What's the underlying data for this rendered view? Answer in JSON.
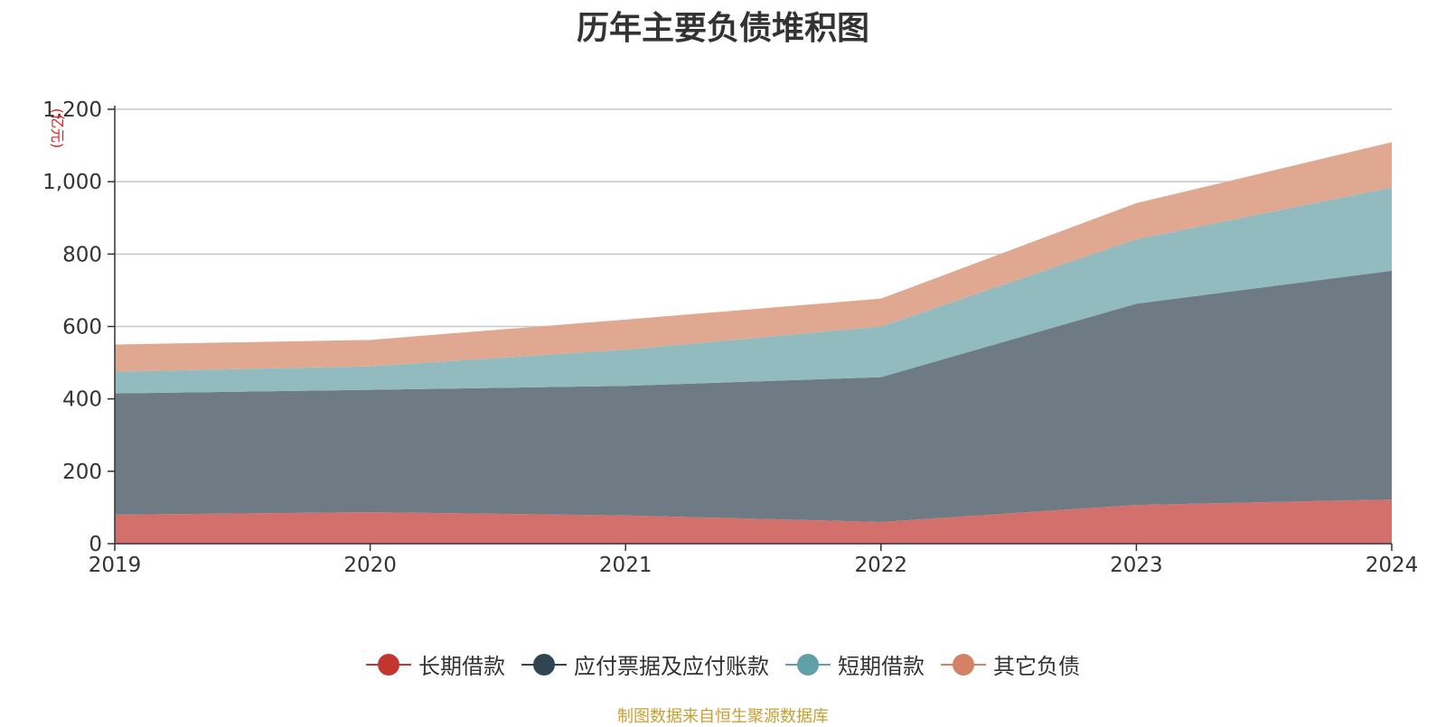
{
  "chart_data": {
    "type": "area",
    "stacked": true,
    "title": "历年主要负债堆积图",
    "unit": "(亿元)",
    "x": [
      "2019",
      "2020",
      "2021",
      "2022",
      "2023",
      "2024"
    ],
    "ylim": [
      0,
      1200
    ],
    "yticks": [
      0,
      200,
      400,
      600,
      800,
      1000,
      1200
    ],
    "ytick_labels": [
      "0",
      "200",
      "400",
      "600",
      "800",
      "1,000",
      "1,200"
    ],
    "grid": true,
    "legend_position": "bottom",
    "series": [
      {
        "name": "长期借款",
        "color": "#c23531",
        "fill": "#d4706c",
        "values": [
          80,
          87,
          78,
          60,
          107,
          122
        ]
      },
      {
        "name": "应付票据及应付账款",
        "color": "#2f4554",
        "fill": "#6e7b85",
        "values": [
          335,
          338,
          358,
          400,
          556,
          632
        ]
      },
      {
        "name": "短期借款",
        "color": "#61a0a8",
        "fill": "#92bbc0",
        "values": [
          60,
          65,
          100,
          140,
          178,
          230
        ]
      },
      {
        "name": "其它负债",
        "color": "#d48265",
        "fill": "#e0a891",
        "values": [
          75,
          73,
          83,
          77,
          100,
          125
        ]
      }
    ],
    "source": "制图数据来自恒生聚源数据库"
  }
}
